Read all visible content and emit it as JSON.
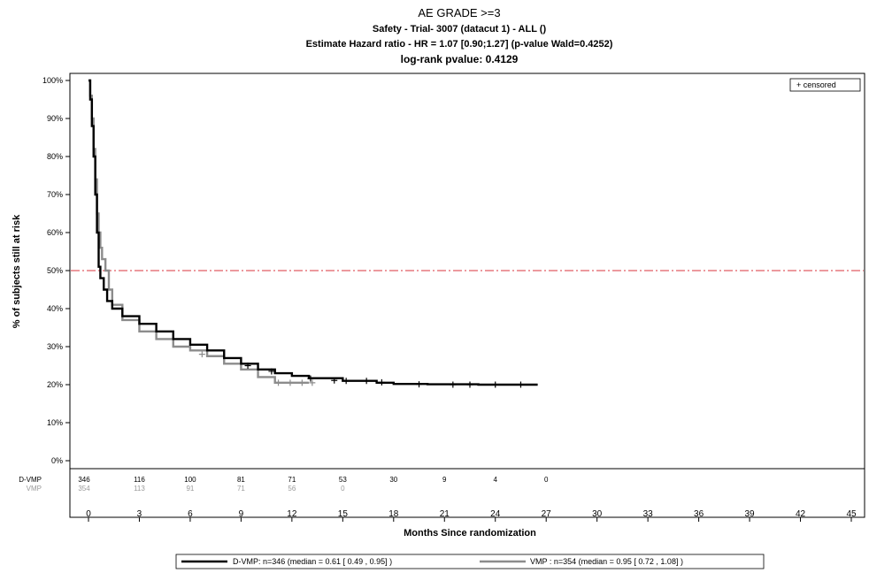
{
  "chart_data": {
    "type": "line",
    "title": "AE GRADE >=3",
    "subtitle_1": "Safety -  Trial- 3007 (datacut 1) - ALL ()",
    "subtitle_2": "Estimate Hazard ratio -  HR = 1.07 [0.90;1.27] (p-value Wald=0.4252)",
    "subtitle_3": "log-rank pvalue: 0.4129",
    "xlabel": "Months Since randomization",
    "ylabel": "% of subjects still at risk",
    "xlim": [
      0,
      45
    ],
    "ylim": [
      0,
      100
    ],
    "x_ticks": [
      0,
      3,
      6,
      9,
      12,
      15,
      18,
      21,
      24,
      27,
      30,
      33,
      36,
      39,
      42,
      45
    ],
    "y_ticks": [
      "0%",
      "10%",
      "20%",
      "30%",
      "40%",
      "50%",
      "60%",
      "70%",
      "80%",
      "90%",
      "100%"
    ],
    "reference_line": {
      "y": 50,
      "color": "#d9343c"
    },
    "inset_legend": "+  censored",
    "series": [
      {
        "name": "D-VMP",
        "color": "#000000",
        "points": [
          [
            0,
            100
          ],
          [
            0.1,
            95
          ],
          [
            0.2,
            88
          ],
          [
            0.3,
            80
          ],
          [
            0.4,
            70
          ],
          [
            0.5,
            60
          ],
          [
            0.6,
            51
          ],
          [
            0.7,
            48
          ],
          [
            0.9,
            45
          ],
          [
            1.1,
            42
          ],
          [
            1.4,
            40
          ],
          [
            2,
            38
          ],
          [
            3,
            36
          ],
          [
            4,
            34
          ],
          [
            5,
            32
          ],
          [
            6,
            30.5
          ],
          [
            7,
            29
          ],
          [
            8,
            27
          ],
          [
            9,
            25.5
          ],
          [
            10,
            24
          ],
          [
            11,
            23
          ],
          [
            12,
            22.3
          ],
          [
            13,
            21.7
          ],
          [
            15,
            21
          ],
          [
            16,
            21
          ],
          [
            17,
            20.5
          ],
          [
            18,
            20.2
          ],
          [
            20,
            20.1
          ],
          [
            23,
            20
          ],
          [
            26.5,
            20
          ]
        ],
        "censored": [
          [
            9.4,
            25
          ],
          [
            10.8,
            23.5
          ],
          [
            13.1,
            21.6
          ],
          [
            14.5,
            21.1
          ],
          [
            15.2,
            21
          ],
          [
            16.4,
            21
          ],
          [
            17.3,
            20.6
          ],
          [
            19.5,
            20.1
          ],
          [
            21.5,
            20
          ],
          [
            22.5,
            20
          ],
          [
            24,
            20
          ],
          [
            25.5,
            20
          ]
        ],
        "at_risk_label": "D-VMP",
        "at_risk": [
          346,
          116,
          100,
          81,
          71,
          53,
          30,
          9,
          4,
          0
        ]
      },
      {
        "name": "VMP",
        "color": "#8c8c8c",
        "points": [
          [
            0,
            100
          ],
          [
            0.1,
            96
          ],
          [
            0.2,
            90
          ],
          [
            0.3,
            82
          ],
          [
            0.4,
            74
          ],
          [
            0.5,
            65
          ],
          [
            0.6,
            60
          ],
          [
            0.7,
            56
          ],
          [
            0.8,
            53
          ],
          [
            1,
            50
          ],
          [
            1.2,
            45
          ],
          [
            1.4,
            41
          ],
          [
            2,
            37
          ],
          [
            3,
            34
          ],
          [
            4,
            32
          ],
          [
            5,
            30
          ],
          [
            6,
            29
          ],
          [
            7,
            27.5
          ],
          [
            8,
            25.5
          ],
          [
            9,
            24
          ],
          [
            10,
            22
          ],
          [
            11,
            20.5
          ],
          [
            12,
            20.5
          ],
          [
            13,
            20.5
          ]
        ],
        "censored": [
          [
            6.7,
            28
          ],
          [
            11.2,
            20.5
          ],
          [
            11.9,
            20.5
          ],
          [
            12.6,
            20.5
          ],
          [
            13.2,
            20.5
          ]
        ],
        "at_risk_label": "VMP",
        "at_risk": [
          354,
          113,
          91,
          71,
          56,
          0
        ]
      }
    ],
    "legend": [
      {
        "label": "D-VMP: n=346 (median = 0.61 [ 0.49 , 0.95] )",
        "color": "#000000"
      },
      {
        "label": "VMP : n=354 (median = 0.95 [ 0.72 , 1.08] )",
        "color": "#8c8c8c"
      }
    ]
  }
}
